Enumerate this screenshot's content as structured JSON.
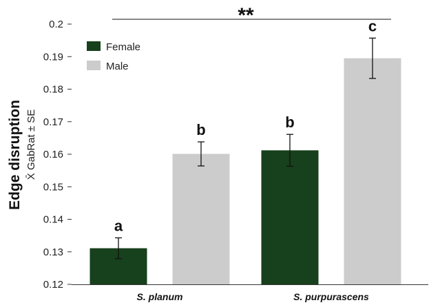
{
  "chart_data": {
    "type": "bar",
    "categories": [
      "S. planum",
      "S. purpurascens"
    ],
    "series": [
      {
        "name": "Female",
        "color": "#17401c",
        "values": [
          0.1311,
          0.1612
        ],
        "errors": [
          0.0032,
          0.0049
        ],
        "letters": [
          "a",
          "b"
        ]
      },
      {
        "name": "Male",
        "color": "#cccccc",
        "values": [
          0.1601,
          0.1895
        ],
        "errors": [
          0.0037,
          0.0062
        ],
        "letters": [
          "b",
          "c"
        ]
      }
    ],
    "ylim": [
      0.12,
      0.2
    ],
    "yticks": [
      "0.12",
      "0.13",
      "0.14",
      "0.15",
      "0.16",
      "0.17",
      "0.18",
      "0.19",
      "0.2"
    ],
    "ylabel": "Edge disruption",
    "ylabel_sub": "X̄ GabRat ± SE",
    "significance": "**",
    "legend_position": "top-left",
    "grid": false
  }
}
